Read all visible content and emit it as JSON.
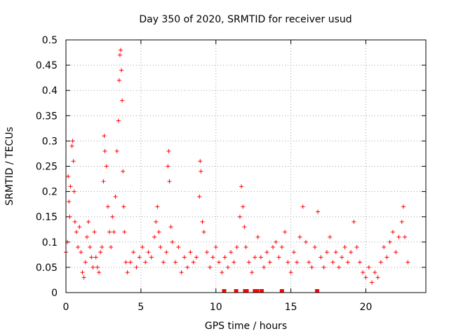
{
  "chart_data": {
    "type": "scatter",
    "title": "Day 350 of 2020, SRMTID for receiver usud",
    "xlabel": "GPS time / hours",
    "ylabel": "SRMTID / TECUs",
    "xlim": [
      0,
      24
    ],
    "ylim": [
      0,
      0.5
    ],
    "x_ticks": [
      "0",
      "5",
      "10",
      "15",
      "20"
    ],
    "y_ticks": [
      "0",
      "0.05",
      "0.1",
      "0.15",
      "0.2",
      "0.25",
      "0.3",
      "0.35",
      "0.4",
      "0.45",
      "0.5"
    ],
    "grid": true,
    "marker": "+",
    "series_color": "#ff0000",
    "gap_markers_x": [
      10.55,
      11.35,
      11.95,
      12.05,
      12.6,
      12.75,
      13.05,
      14.4,
      16.75
    ],
    "series": [
      {
        "name": "SRMTID",
        "points": [
          [
            0.0,
            0.08
          ],
          [
            0.1,
            0.1
          ],
          [
            0.15,
            0.23
          ],
          [
            0.2,
            0.18
          ],
          [
            0.25,
            0.15
          ],
          [
            0.3,
            0.21
          ],
          [
            0.4,
            0.29
          ],
          [
            0.45,
            0.3
          ],
          [
            0.5,
            0.26
          ],
          [
            0.55,
            0.2
          ],
          [
            0.6,
            0.14
          ],
          [
            0.7,
            0.12
          ],
          [
            0.8,
            0.09
          ],
          [
            0.9,
            0.13
          ],
          [
            1.0,
            0.08
          ],
          [
            1.1,
            0.04
          ],
          [
            1.2,
            0.03
          ],
          [
            1.3,
            0.06
          ],
          [
            1.4,
            0.11
          ],
          [
            1.5,
            0.14
          ],
          [
            1.6,
            0.09
          ],
          [
            1.7,
            0.07
          ],
          [
            1.8,
            0.05
          ],
          [
            1.9,
            0.12
          ],
          [
            2.0,
            0.07
          ],
          [
            2.1,
            0.05
          ],
          [
            2.2,
            0.04
          ],
          [
            2.3,
            0.08
          ],
          [
            2.4,
            0.09
          ],
          [
            2.5,
            0.22
          ],
          [
            2.55,
            0.31
          ],
          [
            2.6,
            0.28
          ],
          [
            2.7,
            0.25
          ],
          [
            2.8,
            0.17
          ],
          [
            2.9,
            0.12
          ],
          [
            3.0,
            0.09
          ],
          [
            3.1,
            0.15
          ],
          [
            3.2,
            0.12
          ],
          [
            3.3,
            0.19
          ],
          [
            3.4,
            0.28
          ],
          [
            3.5,
            0.34
          ],
          [
            3.55,
            0.42
          ],
          [
            3.6,
            0.47
          ],
          [
            3.65,
            0.48
          ],
          [
            3.7,
            0.44
          ],
          [
            3.75,
            0.38
          ],
          [
            3.8,
            0.24
          ],
          [
            3.85,
            0.17
          ],
          [
            3.9,
            0.12
          ],
          [
            4.0,
            0.06
          ],
          [
            4.1,
            0.04
          ],
          [
            4.3,
            0.06
          ],
          [
            4.5,
            0.08
          ],
          [
            4.7,
            0.05
          ],
          [
            4.9,
            0.07
          ],
          [
            5.1,
            0.09
          ],
          [
            5.3,
            0.06
          ],
          [
            5.5,
            0.08
          ],
          [
            5.7,
            0.07
          ],
          [
            5.9,
            0.11
          ],
          [
            6.0,
            0.14
          ],
          [
            6.1,
            0.17
          ],
          [
            6.2,
            0.12
          ],
          [
            6.3,
            0.09
          ],
          [
            6.5,
            0.06
          ],
          [
            6.7,
            0.08
          ],
          [
            6.8,
            0.25
          ],
          [
            6.85,
            0.28
          ],
          [
            6.9,
            0.22
          ],
          [
            7.0,
            0.13
          ],
          [
            7.1,
            0.1
          ],
          [
            7.3,
            0.06
          ],
          [
            7.5,
            0.09
          ],
          [
            7.7,
            0.04
          ],
          [
            7.9,
            0.07
          ],
          [
            8.1,
            0.05
          ],
          [
            8.3,
            0.08
          ],
          [
            8.5,
            0.06
          ],
          [
            8.7,
            0.07
          ],
          [
            8.9,
            0.19
          ],
          [
            8.95,
            0.26
          ],
          [
            9.0,
            0.24
          ],
          [
            9.1,
            0.14
          ],
          [
            9.2,
            0.12
          ],
          [
            9.4,
            0.08
          ],
          [
            9.6,
            0.05
          ],
          [
            9.8,
            0.07
          ],
          [
            10.0,
            0.09
          ],
          [
            10.2,
            0.06
          ],
          [
            10.4,
            0.04
          ],
          [
            10.6,
            0.07
          ],
          [
            10.8,
            0.05
          ],
          [
            11.0,
            0.08
          ],
          [
            11.2,
            0.06
          ],
          [
            11.4,
            0.09
          ],
          [
            11.6,
            0.15
          ],
          [
            11.7,
            0.21
          ],
          [
            11.8,
            0.17
          ],
          [
            11.9,
            0.13
          ],
          [
            12.0,
            0.09
          ],
          [
            12.2,
            0.06
          ],
          [
            12.4,
            0.04
          ],
          [
            12.6,
            0.07
          ],
          [
            12.8,
            0.11
          ],
          [
            13.0,
            0.07
          ],
          [
            13.2,
            0.05
          ],
          [
            13.4,
            0.08
          ],
          [
            13.6,
            0.06
          ],
          [
            13.8,
            0.09
          ],
          [
            14.0,
            0.1
          ],
          [
            14.2,
            0.07
          ],
          [
            14.4,
            0.09
          ],
          [
            14.6,
            0.12
          ],
          [
            14.8,
            0.06
          ],
          [
            15.0,
            0.04
          ],
          [
            15.2,
            0.08
          ],
          [
            15.4,
            0.06
          ],
          [
            15.6,
            0.11
          ],
          [
            15.8,
            0.17
          ],
          [
            16.0,
            0.1
          ],
          [
            16.2,
            0.06
          ],
          [
            16.4,
            0.05
          ],
          [
            16.6,
            0.09
          ],
          [
            16.8,
            0.16
          ],
          [
            17.0,
            0.07
          ],
          [
            17.2,
            0.05
          ],
          [
            17.4,
            0.08
          ],
          [
            17.6,
            0.11
          ],
          [
            17.8,
            0.06
          ],
          [
            18.0,
            0.08
          ],
          [
            18.2,
            0.05
          ],
          [
            18.4,
            0.07
          ],
          [
            18.6,
            0.09
          ],
          [
            18.8,
            0.06
          ],
          [
            19.0,
            0.08
          ],
          [
            19.2,
            0.14
          ],
          [
            19.4,
            0.09
          ],
          [
            19.6,
            0.06
          ],
          [
            19.8,
            0.04
          ],
          [
            20.0,
            0.03
          ],
          [
            20.2,
            0.05
          ],
          [
            20.4,
            0.02
          ],
          [
            20.6,
            0.04
          ],
          [
            20.8,
            0.03
          ],
          [
            21.0,
            0.06
          ],
          [
            21.2,
            0.09
          ],
          [
            21.4,
            0.07
          ],
          [
            21.6,
            0.1
          ],
          [
            21.8,
            0.12
          ],
          [
            22.0,
            0.08
          ],
          [
            22.2,
            0.11
          ],
          [
            22.4,
            0.14
          ],
          [
            22.5,
            0.17
          ],
          [
            22.6,
            0.11
          ],
          [
            22.8,
            0.06
          ]
        ]
      }
    ]
  }
}
